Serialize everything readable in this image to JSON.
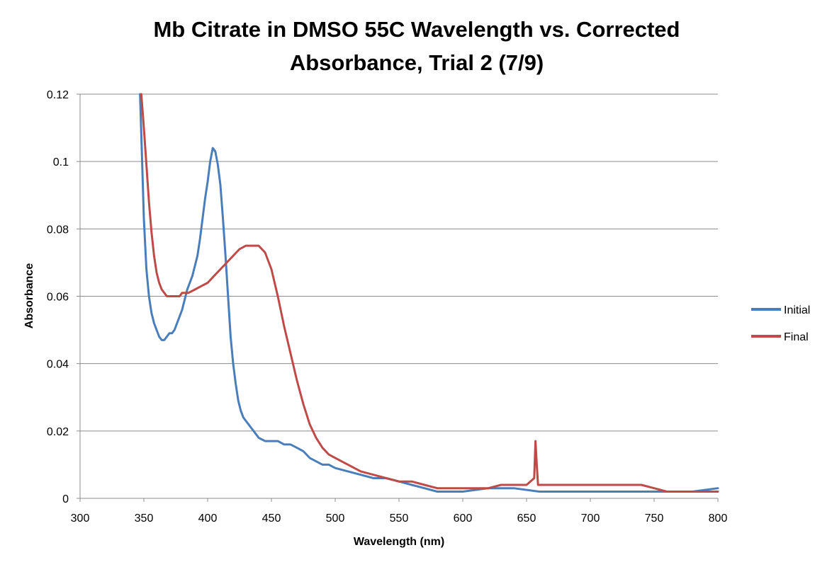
{
  "chart_data": {
    "type": "line",
    "title_lines": [
      "Mb Citrate in DMSO 55C Wavelength vs. Corrected",
      "Absorbance, Trial 2 (7/9)"
    ],
    "xlabel": "Wavelength (nm)",
    "ylabel": "Absorbance",
    "xlim": [
      300,
      800
    ],
    "ylim": [
      0,
      0.12
    ],
    "x_ticks": [
      300,
      350,
      400,
      450,
      500,
      550,
      600,
      650,
      700,
      750,
      800
    ],
    "x_tick_labels": [
      "300",
      "350",
      "400",
      "450",
      "500",
      "550",
      "600",
      "650",
      "700",
      "750",
      "800"
    ],
    "y_ticks": [
      0,
      0.02,
      0.04,
      0.06,
      0.08,
      0.1,
      0.12
    ],
    "y_tick_labels": [
      "0",
      "0.02",
      "0.04",
      "0.06",
      "0.08",
      "0.1",
      "0.12"
    ],
    "grid": "horizontal",
    "legend_position": "right",
    "series": [
      {
        "name": "Initial",
        "color": "#4a7ebb",
        "x": [
          347,
          348,
          350,
          352,
          354,
          356,
          358,
          360,
          362,
          364,
          366,
          368,
          370,
          372,
          374,
          376,
          378,
          380,
          382,
          384,
          386,
          388,
          390,
          392,
          394,
          396,
          398,
          400,
          402,
          404,
          406,
          408,
          410,
          412,
          414,
          416,
          418,
          420,
          422,
          424,
          426,
          428,
          430,
          432,
          434,
          436,
          438,
          440,
          445,
          450,
          455,
          460,
          465,
          470,
          475,
          480,
          485,
          490,
          495,
          500,
          510,
          520,
          530,
          540,
          550,
          560,
          570,
          580,
          590,
          600,
          620,
          640,
          660,
          680,
          700,
          720,
          740,
          760,
          780,
          800
        ],
        "y": [
          0.12,
          0.108,
          0.083,
          0.068,
          0.06,
          0.055,
          0.052,
          0.05,
          0.048,
          0.047,
          0.047,
          0.048,
          0.049,
          0.049,
          0.05,
          0.052,
          0.054,
          0.056,
          0.059,
          0.062,
          0.064,
          0.066,
          0.069,
          0.072,
          0.077,
          0.083,
          0.089,
          0.094,
          0.1,
          0.104,
          0.103,
          0.099,
          0.093,
          0.083,
          0.072,
          0.06,
          0.048,
          0.04,
          0.034,
          0.029,
          0.026,
          0.024,
          0.023,
          0.022,
          0.021,
          0.02,
          0.019,
          0.018,
          0.017,
          0.017,
          0.017,
          0.016,
          0.016,
          0.015,
          0.014,
          0.012,
          0.011,
          0.01,
          0.01,
          0.009,
          0.008,
          0.007,
          0.006,
          0.006,
          0.005,
          0.004,
          0.003,
          0.002,
          0.002,
          0.002,
          0.003,
          0.003,
          0.002,
          0.002,
          0.002,
          0.002,
          0.002,
          0.002,
          0.002,
          0.003
        ]
      },
      {
        "name": "Final",
        "color": "#be4b48",
        "x": [
          348,
          350,
          352,
          354,
          356,
          358,
          360,
          362,
          364,
          366,
          368,
          370,
          372,
          374,
          376,
          378,
          380,
          385,
          390,
          395,
          400,
          405,
          410,
          415,
          420,
          425,
          430,
          435,
          440,
          445,
          450,
          455,
          460,
          465,
          470,
          475,
          480,
          485,
          490,
          495,
          500,
          510,
          520,
          530,
          540,
          550,
          560,
          570,
          580,
          590,
          600,
          610,
          620,
          630,
          640,
          650,
          656,
          657,
          658,
          659,
          660,
          670,
          680,
          690,
          700,
          710,
          720,
          730,
          740,
          750,
          760,
          780,
          800
        ],
        "y": [
          0.12,
          0.11,
          0.099,
          0.088,
          0.079,
          0.072,
          0.067,
          0.064,
          0.062,
          0.061,
          0.06,
          0.06,
          0.06,
          0.06,
          0.06,
          0.06,
          0.061,
          0.061,
          0.062,
          0.063,
          0.064,
          0.066,
          0.068,
          0.07,
          0.072,
          0.074,
          0.075,
          0.075,
          0.075,
          0.073,
          0.068,
          0.06,
          0.051,
          0.043,
          0.035,
          0.028,
          0.022,
          0.018,
          0.015,
          0.013,
          0.012,
          0.01,
          0.008,
          0.007,
          0.006,
          0.005,
          0.005,
          0.004,
          0.003,
          0.003,
          0.003,
          0.003,
          0.003,
          0.004,
          0.004,
          0.004,
          0.006,
          0.017,
          0.01,
          0.004,
          0.004,
          0.004,
          0.004,
          0.004,
          0.004,
          0.004,
          0.004,
          0.004,
          0.004,
          0.003,
          0.002,
          0.002,
          0.002
        ]
      }
    ]
  }
}
